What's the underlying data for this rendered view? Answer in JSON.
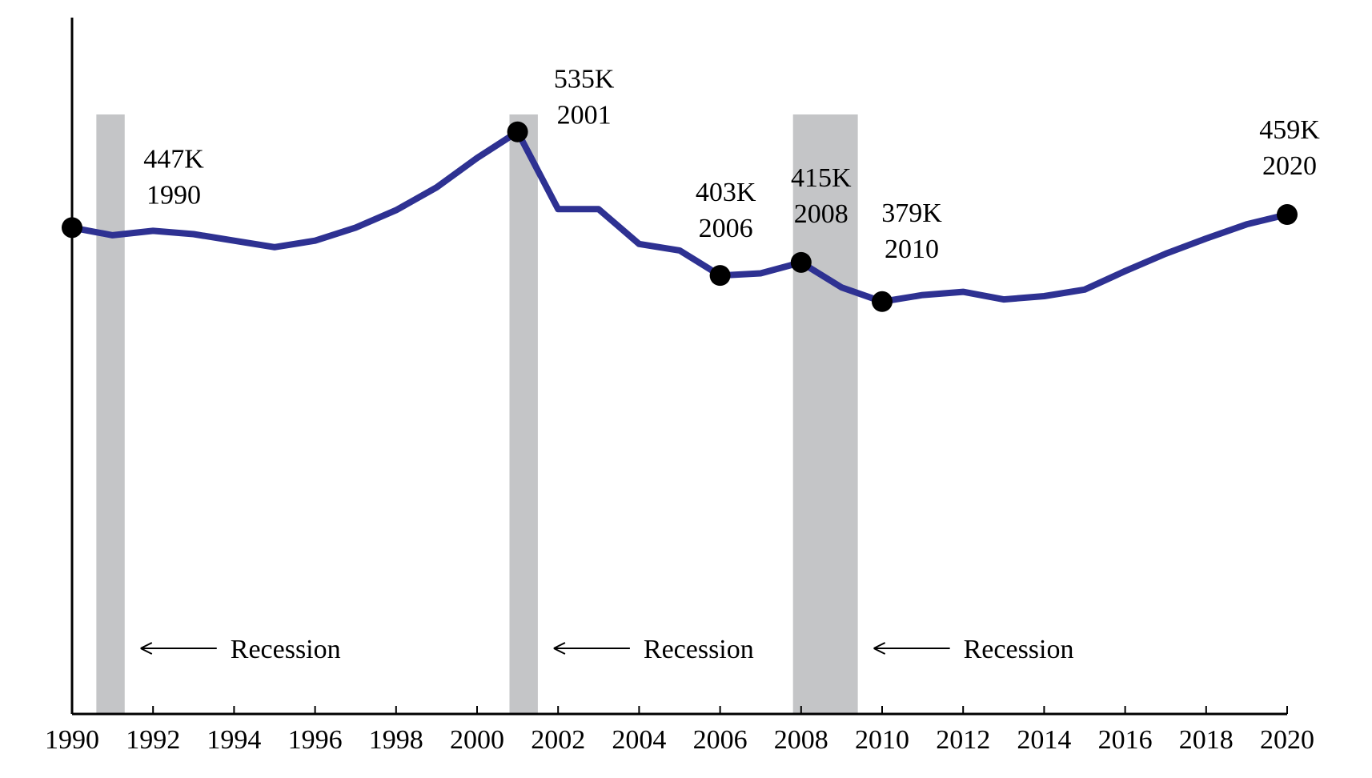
{
  "chart_data": {
    "type": "line",
    "title": "",
    "xlabel": "",
    "ylabel": "",
    "xlim": [
      1990,
      2020
    ],
    "ylim": [
      0,
      640
    ],
    "x_ticks": [
      "1990",
      "1992",
      "1994",
      "1996",
      "1998",
      "2000",
      "2002",
      "2004",
      "2006",
      "2008",
      "2010",
      "2012",
      "2014",
      "2016",
      "2018",
      "2020"
    ],
    "y_axis_ticks_shown": false,
    "grid": false,
    "legend": "none",
    "series": [
      {
        "color": "#2e3192",
        "x": [
          1990,
          1991,
          1992,
          1993,
          1994,
          1995,
          1996,
          1997,
          1998,
          1999,
          2000,
          2001,
          2002,
          2003,
          2004,
          2005,
          2006,
          2007,
          2008,
          2009,
          2010,
          2011,
          2012,
          2013,
          2014,
          2015,
          2016,
          2017,
          2018,
          2019,
          2020
        ],
        "y": [
          447,
          440,
          444,
          441,
          435,
          429,
          435,
          447,
          463,
          484,
          511,
          535,
          464,
          464,
          432,
          426,
          403,
          405,
          415,
          392,
          379,
          385,
          388,
          381,
          384,
          390,
          407,
          423,
          437,
          450,
          459
        ]
      }
    ],
    "highlighted_points": [
      {
        "x": 1990,
        "y": 447,
        "value_label": "447K",
        "year_label": "1990"
      },
      {
        "x": 2001,
        "y": 535,
        "value_label": "535K",
        "year_label": "2001"
      },
      {
        "x": 2006,
        "y": 403,
        "value_label": "403K",
        "year_label": "2006"
      },
      {
        "x": 2008,
        "y": 415,
        "value_label": "415K",
        "year_label": "2008"
      },
      {
        "x": 2010,
        "y": 379,
        "value_label": "379K",
        "year_label": "2010"
      },
      {
        "x": 2020,
        "y": 459,
        "value_label": "459K",
        "year_label": "2020"
      }
    ],
    "recessions": [
      {
        "start": 1990.6,
        "end": 1991.3,
        "label": "Recession"
      },
      {
        "start": 2000.8,
        "end": 2001.5,
        "label": "Recession"
      },
      {
        "start": 2007.8,
        "end": 2009.4,
        "label": "Recession"
      }
    ],
    "colors": {
      "line": "#2e3192",
      "recession_band": "#c4c5c7",
      "axis": "#000000",
      "marker": "#000000"
    }
  }
}
